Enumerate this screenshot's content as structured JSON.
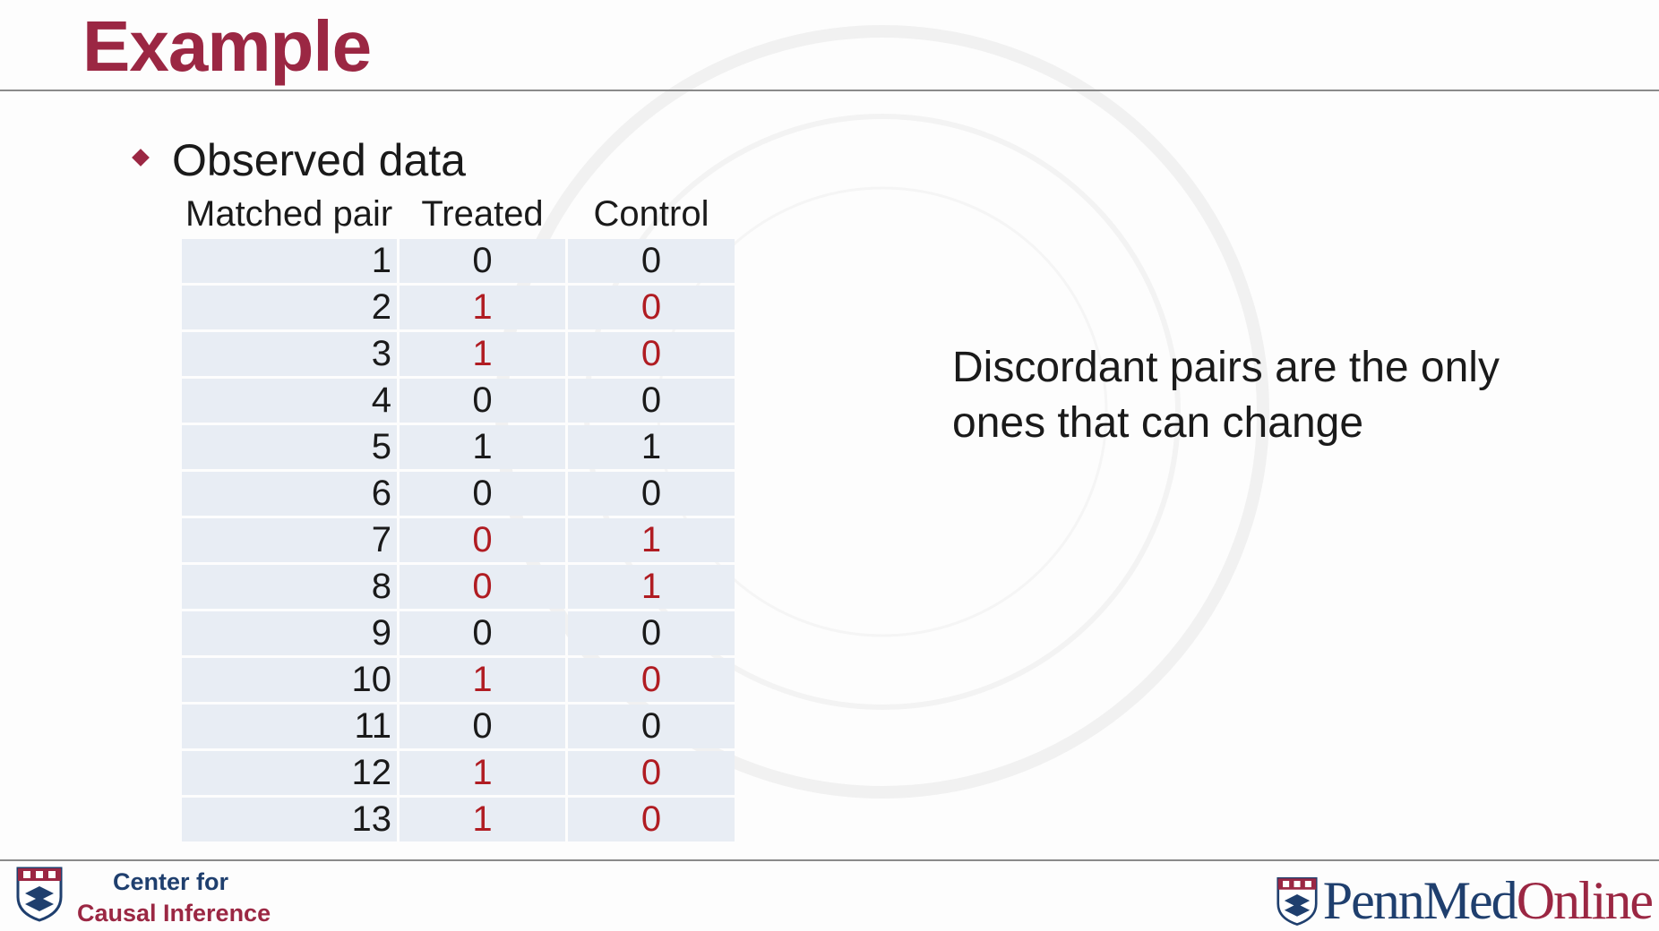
{
  "slide": {
    "title": "Example",
    "bullet": "Observed data",
    "side_note": "Discordant pairs are the only ones that can change"
  },
  "table": {
    "headers": [
      "Matched pair",
      "Treated",
      "Control"
    ],
    "rows": [
      {
        "pair": "1",
        "treated": "0",
        "control": "0",
        "discordant": false
      },
      {
        "pair": "2",
        "treated": "1",
        "control": "0",
        "discordant": true
      },
      {
        "pair": "3",
        "treated": "1",
        "control": "0",
        "discordant": true
      },
      {
        "pair": "4",
        "treated": "0",
        "control": "0",
        "discordant": false
      },
      {
        "pair": "5",
        "treated": "1",
        "control": "1",
        "discordant": false
      },
      {
        "pair": "6",
        "treated": "0",
        "control": "0",
        "discordant": false
      },
      {
        "pair": "7",
        "treated": "0",
        "control": "1",
        "discordant": true
      },
      {
        "pair": "8",
        "treated": "0",
        "control": "1",
        "discordant": true
      },
      {
        "pair": "9",
        "treated": "0",
        "control": "0",
        "discordant": false
      },
      {
        "pair": "10",
        "treated": "1",
        "control": "0",
        "discordant": true
      },
      {
        "pair": "11",
        "treated": "0",
        "control": "0",
        "discordant": false
      },
      {
        "pair": "12",
        "treated": "1",
        "control": "0",
        "discordant": true
      },
      {
        "pair": "13",
        "treated": "1",
        "control": "0",
        "discordant": true
      }
    ]
  },
  "footer": {
    "center_line1": "Center for",
    "center_line2": "Causal Inference",
    "brand_penn_med": "PennMed",
    "brand_online": "Online"
  },
  "colors": {
    "title": "#9b2743",
    "discordant": "#b01c22",
    "cell_bg": "#e8edf4",
    "navy": "#1f3f6e"
  },
  "icons": {
    "bullet": "diamond-bullet-icon",
    "center_logo": "penn-shield-icon",
    "brand_logo": "penn-shield-icon"
  }
}
